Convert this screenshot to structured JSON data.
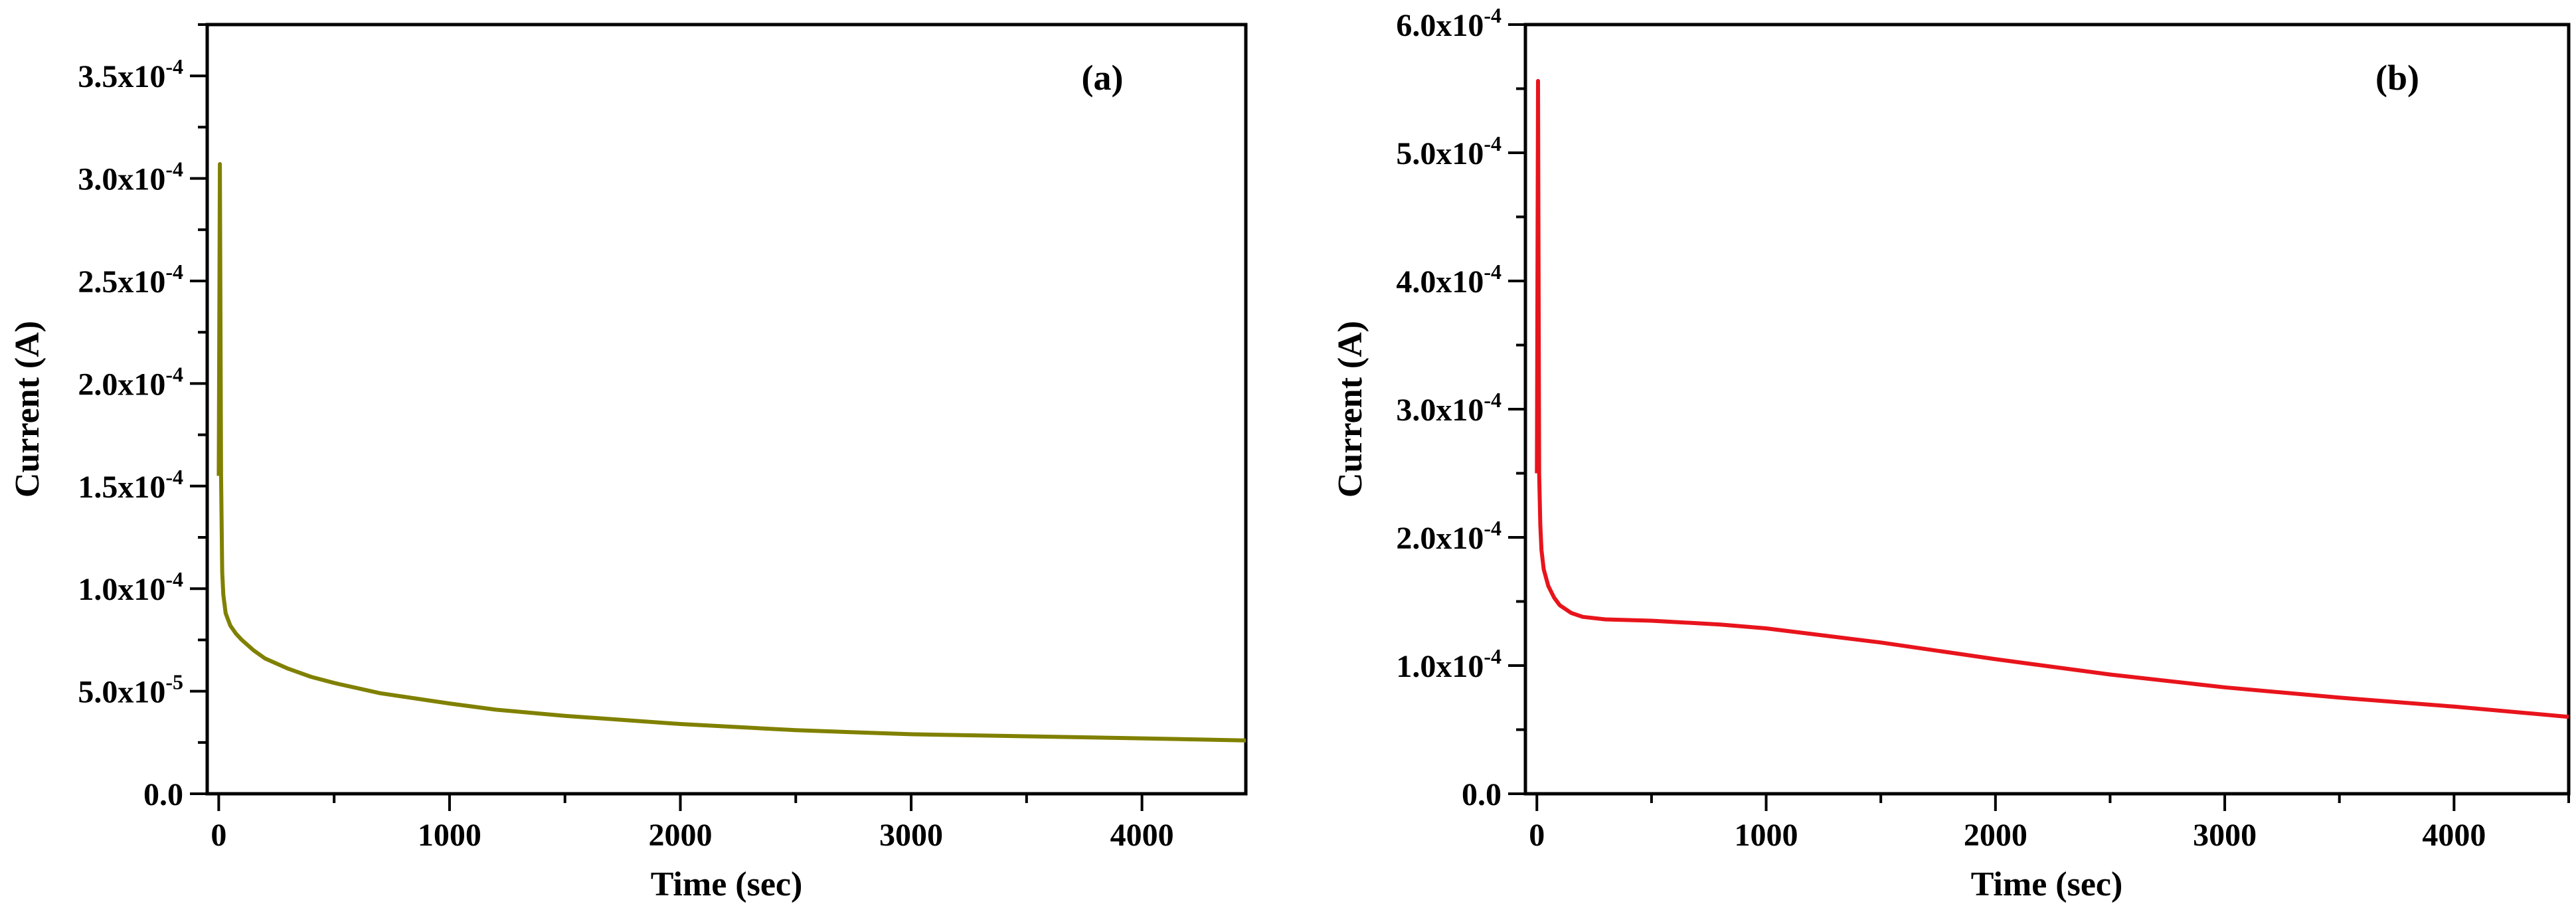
{
  "chart_data": [
    {
      "type": "line",
      "panel_label": "(a)",
      "xlabel": "Time (sec)",
      "ylabel": "Current (A)",
      "xlim": [
        -50,
        4450
      ],
      "ylim": [
        0,
        0.000375
      ],
      "x_ticks": [
        {
          "value": 0,
          "label": "0"
        },
        {
          "value": 1000,
          "label": "1000"
        },
        {
          "value": 2000,
          "label": "2000"
        },
        {
          "value": 3000,
          "label": "3000"
        },
        {
          "value": 4000,
          "label": "4000"
        }
      ],
      "y_ticks": [
        {
          "value": 0,
          "mant": "0.0",
          "exp": ""
        },
        {
          "value": 5e-05,
          "mant": "5.0x10",
          "exp": "-5"
        },
        {
          "value": 0.0001,
          "mant": "1.0x10",
          "exp": "-4"
        },
        {
          "value": 0.00015,
          "mant": "1.5x10",
          "exp": "-4"
        },
        {
          "value": 0.0002,
          "mant": "2.0x10",
          "exp": "-4"
        },
        {
          "value": 0.00025,
          "mant": "2.5x10",
          "exp": "-4"
        },
        {
          "value": 0.0003,
          "mant": "3.0x10",
          "exp": "-4"
        },
        {
          "value": 0.00035,
          "mant": "3.5x10",
          "exp": "-4"
        }
      ],
      "color": "#808000",
      "series": [
        {
          "name": "(a)",
          "x": [
            0,
            5,
            10,
            15,
            20,
            30,
            50,
            75,
            100,
            150,
            200,
            300,
            400,
            500,
            700,
            1000,
            1200,
            1500,
            2000,
            2500,
            3000,
            3500,
            4000,
            4450
          ],
          "y": [
            0.000155,
            0.000307,
            0.000155,
            0.000108,
            9.7e-05,
            8.8e-05,
            8.2e-05,
            7.8e-05,
            7.5e-05,
            7e-05,
            6.6e-05,
            6.1e-05,
            5.7e-05,
            5.4e-05,
            4.9e-05,
            4.4e-05,
            4.1e-05,
            3.8e-05,
            3.4e-05,
            3.1e-05,
            2.9e-05,
            2.8e-05,
            2.7e-05,
            2.6e-05
          ]
        }
      ]
    },
    {
      "type": "line",
      "panel_label": "(b)",
      "xlabel": "Time (sec)",
      "ylabel": "Current (A)",
      "xlim": [
        -50,
        4500
      ],
      "ylim": [
        0,
        0.0006
      ],
      "x_ticks": [
        {
          "value": 0,
          "label": "0"
        },
        {
          "value": 1000,
          "label": "1000"
        },
        {
          "value": 2000,
          "label": "2000"
        },
        {
          "value": 3000,
          "label": "3000"
        },
        {
          "value": 4000,
          "label": "4000"
        }
      ],
      "y_ticks": [
        {
          "value": 0,
          "mant": "0.0",
          "exp": ""
        },
        {
          "value": 0.0001,
          "mant": "1.0x10",
          "exp": "-4"
        },
        {
          "value": 0.0002,
          "mant": "2.0x10",
          "exp": "-4"
        },
        {
          "value": 0.0003,
          "mant": "3.0x10",
          "exp": "-4"
        },
        {
          "value": 0.0004,
          "mant": "4.0x10",
          "exp": "-4"
        },
        {
          "value": 0.0005,
          "mant": "5.0x10",
          "exp": "-4"
        },
        {
          "value": 0.0006,
          "mant": "6.0x10",
          "exp": "-4"
        }
      ],
      "color": "#e8141c",
      "series": [
        {
          "name": "(b)",
          "x": [
            0,
            5,
            10,
            15,
            20,
            30,
            50,
            75,
            100,
            150,
            200,
            300,
            500,
            800,
            1000,
            1500,
            2000,
            2500,
            3000,
            3500,
            4000,
            4500
          ],
          "y": [
            0.00025,
            0.000556,
            0.00025,
            0.00021,
            0.00019,
            0.000175,
            0.000162,
            0.000153,
            0.000147,
            0.000141,
            0.000138,
            0.000136,
            0.000135,
            0.000132,
            0.000129,
            0.000118,
            0.000105,
            9.3e-05,
            8.3e-05,
            7.5e-05,
            6.8e-05,
            6e-05
          ]
        }
      ]
    }
  ]
}
